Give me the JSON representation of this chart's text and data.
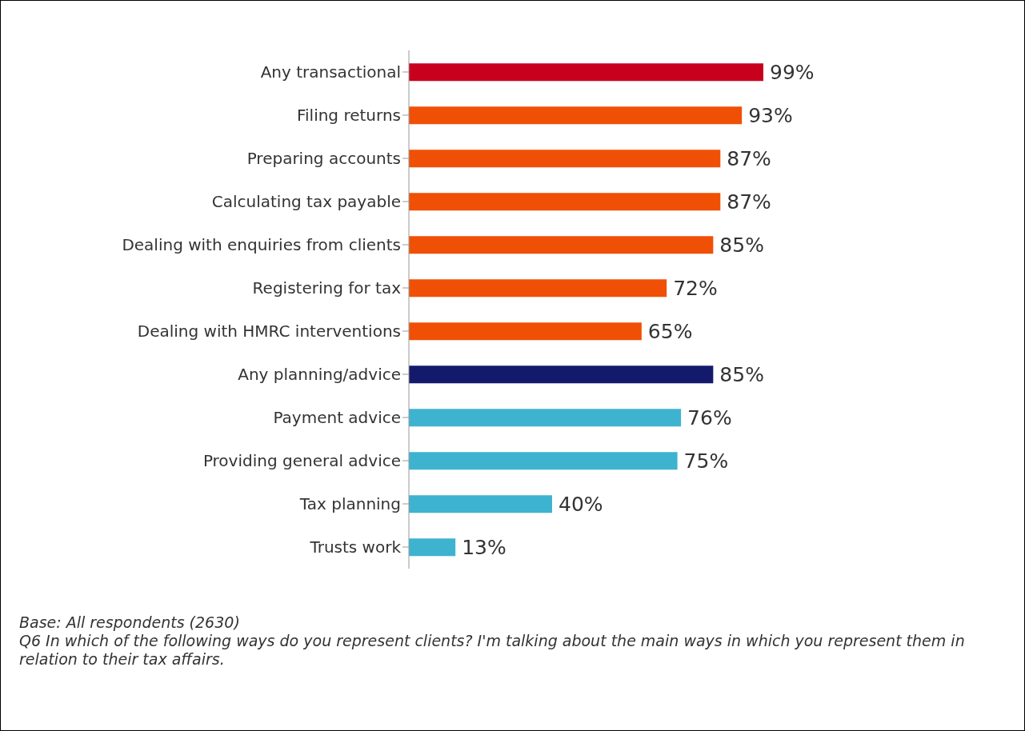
{
  "chart_data": {
    "type": "bar",
    "orientation": "horizontal",
    "categories": [
      "Any transactional",
      "Filing returns",
      "Preparing accounts",
      "Calculating tax payable",
      "Dealing with enquiries from clients",
      "Registering for tax",
      "Dealing with HMRC interventions",
      "Any planning/advice",
      "Payment advice",
      "Providing general advice ",
      "Tax planning",
      "Trusts work"
    ],
    "values": [
      99,
      93,
      87,
      87,
      85,
      72,
      65,
      85,
      76,
      75,
      40,
      13
    ],
    "value_labels": [
      "99%",
      "93%",
      "87%",
      "87%",
      "85%",
      "72%",
      "65%",
      "85%",
      "76%",
      "75%",
      "40%",
      "13%"
    ],
    "colors": [
      "#c8001e",
      "#f05006",
      "#f05006",
      "#f05006",
      "#f05006",
      "#f05006",
      "#f05006",
      "#141a6b",
      "#3db3d0",
      "#3db3d0",
      "#3db3d0",
      "#3db3d0"
    ],
    "annotations": [
      "Base: All respondents (2630)",
      "Q6 In which of the following ways do you represent clients? I'm talking about the main ways in which you represent them in relation to their tax affairs."
    ]
  }
}
